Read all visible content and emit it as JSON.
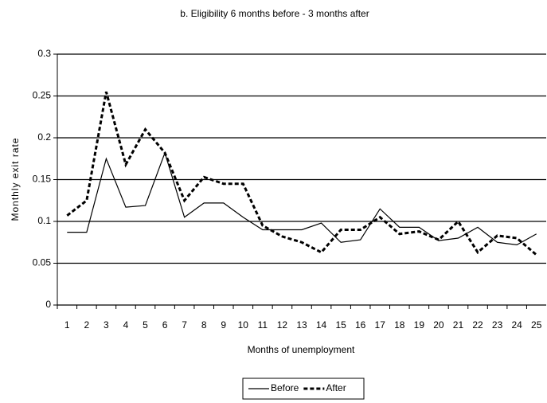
{
  "chart_data": {
    "type": "line",
    "title": "b. Eligibility 6 months before - 3 months after",
    "x_label": "Months of unemployment",
    "y_label": "Monthly exit rate",
    "categories": [
      "1",
      "2",
      "3",
      "4",
      "5",
      "6",
      "7",
      "8",
      "9",
      "10",
      "11",
      "12",
      "13",
      "14",
      "15",
      "16",
      "17",
      "18",
      "19",
      "20",
      "21",
      "22",
      "23",
      "24",
      "25"
    ],
    "series": [
      {
        "name": "Before",
        "color": "#000000",
        "style": "solid",
        "values": [
          0.087,
          0.087,
          0.175,
          0.117,
          0.119,
          0.182,
          0.105,
          0.122,
          0.122,
          0.105,
          0.09,
          0.09,
          0.09,
          0.098,
          0.075,
          0.078,
          0.115,
          0.093,
          0.093,
          0.077,
          0.08,
          0.093,
          0.075,
          0.072,
          0.085
        ]
      },
      {
        "name": "After",
        "color": "#000000",
        "style": "dashed",
        "values": [
          0.107,
          0.125,
          0.255,
          0.168,
          0.21,
          0.182,
          0.125,
          0.153,
          0.145,
          0.145,
          0.095,
          0.082,
          0.075,
          0.063,
          0.09,
          0.09,
          0.105,
          0.085,
          0.088,
          0.078,
          0.1,
          0.063,
          0.083,
          0.08,
          0.06
        ]
      }
    ],
    "ylim": [
      0,
      0.3
    ],
    "yticks": [
      0,
      0.05,
      0.1,
      0.15,
      0.2,
      0.25,
      0.3
    ],
    "grid": true,
    "legend": "bottom"
  }
}
